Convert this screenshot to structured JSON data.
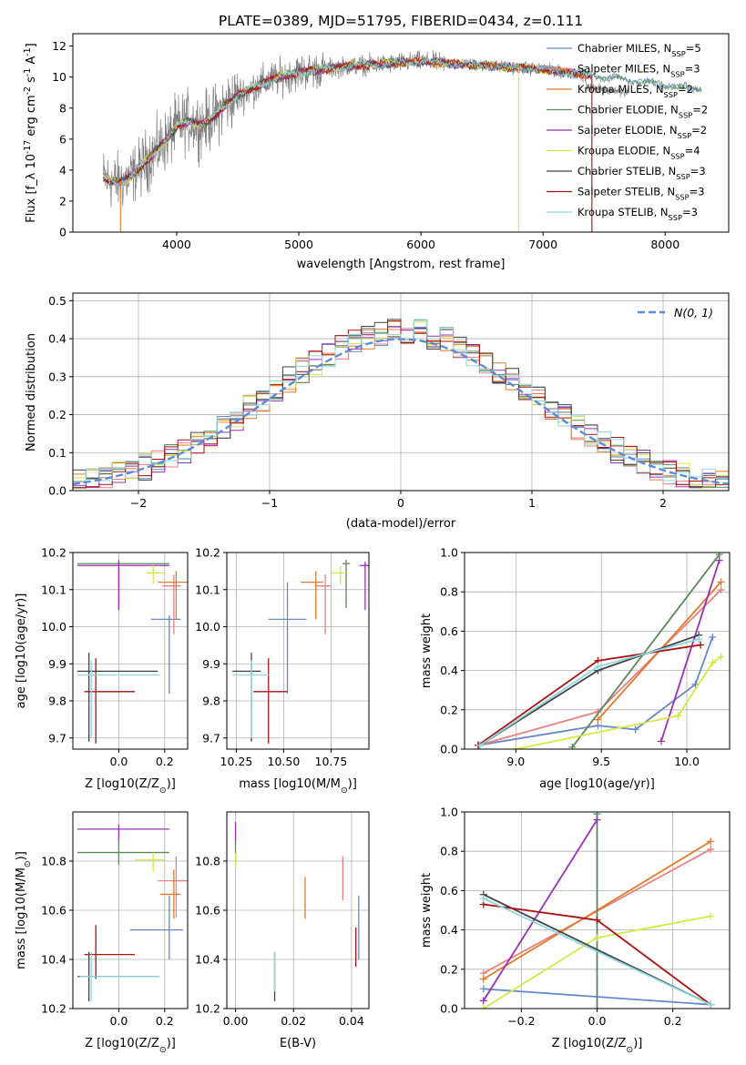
{
  "chart_data": [
    {
      "type": "line",
      "title": "PLATE=0389, MJD=51795, FIBERID=0434, z=0.111",
      "xlabel": "wavelength [Angstrom, rest frame]",
      "ylabel": "Flux [f_λ 10^-17 erg cm^-2 s^-1 A^-1]",
      "xlim": [
        3150,
        8520
      ],
      "ylim": [
        0,
        12.8
      ],
      "xticks": [
        4000,
        5000,
        6000,
        7000,
        8000
      ],
      "yticks": [
        0,
        2,
        4,
        6,
        8,
        10,
        12
      ],
      "data_color": "#808080",
      "continuum": {
        "x": [
          3400,
          3500,
          3600,
          3700,
          3800,
          3900,
          4000,
          4100,
          4200,
          4300,
          4400,
          4500,
          4600,
          4700,
          4800,
          4900,
          5000,
          5200,
          5400,
          5600,
          5800,
          6000,
          6200,
          6400,
          6600,
          6800,
          7000,
          7200,
          7400,
          7600,
          7800,
          8000,
          8200
        ],
        "y": [
          3.5,
          3.2,
          3.4,
          4.2,
          5.0,
          5.8,
          6.8,
          7.2,
          6.9,
          7.4,
          8.2,
          8.8,
          9.2,
          9.6,
          9.9,
          10.1,
          10.3,
          10.5,
          10.7,
          10.8,
          10.9,
          11.0,
          10.9,
          10.8,
          10.7,
          10.6,
          10.5,
          10.3,
          10.1,
          9.9,
          9.7,
          9.5,
          9.3
        ]
      },
      "legend_position": "upper right",
      "series": [
        {
          "name": "Chabrier MILES, N_SSP=5",
          "color": "#6688cc"
        },
        {
          "name": "Salpeter MILES, N_SSP=3",
          "color": "#e8817f"
        },
        {
          "name": "Kroupa MILES, N_SSP=2",
          "color": "#e07b2a"
        },
        {
          "name": "Chabrier ELODIE, N_SSP=2",
          "color": "#5a8a5a"
        },
        {
          "name": "Salpeter ELODIE, N_SSP=2",
          "color": "#9b30b8"
        },
        {
          "name": "Kroupa ELODIE, N_SSP=4",
          "color": "#d4e84a"
        },
        {
          "name": "Chabrier STELIB, N_SSP=3",
          "color": "#444444"
        },
        {
          "name": "Salpeter STELIB, N_SSP=3",
          "color": "#aa1111"
        },
        {
          "name": "Kroupa STELIB, N_SSP=3",
          "color": "#8ed8e0"
        }
      ]
    },
    {
      "type": "histogram",
      "xlabel": "(data-model)/error",
      "ylabel": "Normed distribution",
      "xlim": [
        -2.5,
        2.5
      ],
      "ylim": [
        0,
        0.52
      ],
      "xticks": [
        -2,
        -1,
        0,
        1,
        2
      ],
      "yticks": [
        0.0,
        0.1,
        0.2,
        0.3,
        0.4,
        0.5
      ],
      "grid": true,
      "reference_curve": {
        "name": "N(0,1)",
        "mean": 0,
        "sigma": 1,
        "color": "#5b8bd9",
        "style": "dashed"
      },
      "legend_position": "upper right",
      "bin_width": 0.1,
      "bin_edges_start": -2.5
    },
    {
      "type": "scatter",
      "xlabel": "Z [log10(Z/Z_sun)]",
      "ylabel": "age [log10(age/yr)]",
      "xlim": [
        -0.2,
        0.3
      ],
      "ylim": [
        9.67,
        10.2
      ],
      "xticks": [
        0.0,
        0.2
      ],
      "yticks": [
        9.7,
        9.8,
        9.9,
        10.0,
        10.1,
        10.2
      ],
      "points": [
        {
          "series": 0,
          "x": 0.22,
          "y": 10.02,
          "xerr": [
            0.08,
            0.05
          ],
          "yerr": [
            0.2,
            0.01
          ]
        },
        {
          "series": 1,
          "x": 0.24,
          "y": 10.11,
          "xerr": [
            0.05,
            0.03
          ],
          "yerr": [
            0.13,
            0.03
          ]
        },
        {
          "series": 2,
          "x": 0.25,
          "y": 10.12,
          "xerr": [
            0.08,
            0.05
          ],
          "yerr": [
            0.1,
            0.03
          ]
        },
        {
          "series": 3,
          "x": 0.0,
          "y": 10.17,
          "xerr": [
            0.18,
            0.22
          ],
          "yerr": [
            0.12,
            0.01
          ]
        },
        {
          "series": 4,
          "x": 0.0,
          "y": 10.165,
          "xerr": [
            0.18,
            0.22
          ],
          "yerr": [
            0.12,
            0.01
          ]
        },
        {
          "series": 5,
          "x": 0.15,
          "y": 10.145,
          "xerr": [
            0.03,
            0.05
          ],
          "yerr": [
            0.03,
            0.02
          ]
        },
        {
          "series": 6,
          "x": -0.13,
          "y": 9.88,
          "xerr": [
            0.05,
            0.3
          ],
          "yerr": [
            0.19,
            0.05
          ]
        },
        {
          "series": 7,
          "x": -0.1,
          "y": 9.825,
          "xerr": [
            0.05,
            0.17
          ],
          "yerr": [
            0.14,
            0.09
          ]
        },
        {
          "series": 8,
          "x": -0.12,
          "y": 9.87,
          "xerr": [
            0.06,
            0.3
          ],
          "yerr": [
            0.17,
            0.04
          ]
        }
      ]
    },
    {
      "type": "scatter",
      "xlabel": "mass [log10(M/M_sun)]",
      "xlim": [
        10.2,
        10.95
      ],
      "ylim": [
        9.67,
        10.2
      ],
      "xticks": [
        10.25,
        10.5,
        10.75
      ],
      "yticks": [
        9.7,
        9.8,
        9.9,
        10.0,
        10.1,
        10.2
      ],
      "points": [
        {
          "series": 0,
          "x": 10.52,
          "y": 10.02,
          "xerr": [
            0.1,
            0.1
          ],
          "yerr": [
            0.2,
            0.1
          ]
        },
        {
          "series": 1,
          "x": 10.72,
          "y": 10.11,
          "xerr": [
            0.05,
            0.03
          ],
          "yerr": [
            0.13,
            0.03
          ]
        },
        {
          "series": 2,
          "x": 10.67,
          "y": 10.12,
          "xerr": [
            0.08,
            0.04
          ],
          "yerr": [
            0.1,
            0.03
          ]
        },
        {
          "series": 3,
          "x": 10.83,
          "y": 10.17,
          "xerr": [
            0.02,
            0.02
          ],
          "yerr": [
            0.12,
            0.01
          ]
        },
        {
          "series": 4,
          "x": 10.93,
          "y": 10.165,
          "xerr": [
            0.03,
            0.02
          ],
          "yerr": [
            0.12,
            0.01
          ]
        },
        {
          "series": 5,
          "x": 10.8,
          "y": 10.145,
          "xerr": [
            0.05,
            0.02
          ],
          "yerr": [
            0.03,
            0.02
          ]
        },
        {
          "series": 6,
          "x": 10.33,
          "y": 9.88,
          "xerr": [
            0.1,
            0.05
          ],
          "yerr": [
            0.19,
            0.05
          ]
        },
        {
          "series": 7,
          "x": 10.42,
          "y": 9.825,
          "xerr": [
            0.08,
            0.1
          ],
          "yerr": [
            0.14,
            0.09
          ]
        },
        {
          "series": 8,
          "x": 10.33,
          "y": 9.87,
          "xerr": [
            0.1,
            0.1
          ],
          "yerr": [
            0.17,
            0.04
          ]
        }
      ]
    },
    {
      "type": "line",
      "xlabel": "age [log10(age/yr)]",
      "ylabel": "mass weight",
      "xlim": [
        8.7,
        10.25
      ],
      "ylim": [
        0,
        1
      ],
      "xticks": [
        9.0,
        9.5,
        10.0
      ],
      "yticks": [
        0.0,
        0.2,
        0.4,
        0.6,
        0.8,
        1.0
      ],
      "grid": true,
      "lines": [
        {
          "series": 0,
          "x": [
            8.78,
            9.48,
            9.7,
            10.05,
            10.15
          ],
          "y": [
            0.02,
            0.12,
            0.1,
            0.33,
            0.57
          ]
        },
        {
          "series": 1,
          "x": [
            8.78,
            9.48,
            10.2
          ],
          "y": [
            0.02,
            0.19,
            0.81
          ]
        },
        {
          "series": 2,
          "x": [
            9.48,
            10.2
          ],
          "y": [
            0.15,
            0.85
          ]
        },
        {
          "series": 3,
          "x": [
            9.33,
            10.19
          ],
          "y": [
            0.01,
            0.99
          ]
        },
        {
          "series": 4,
          "x": [
            9.85,
            10.19
          ],
          "y": [
            0.04,
            0.96
          ]
        },
        {
          "series": 5,
          "x": [
            9.0,
            9.95,
            10.15,
            10.2
          ],
          "y": [
            0.0,
            0.17,
            0.44,
            0.47
          ]
        },
        {
          "series": 6,
          "x": [
            8.79,
            9.48,
            10.07
          ],
          "y": [
            0.02,
            0.4,
            0.58
          ]
        },
        {
          "series": 7,
          "x": [
            8.78,
            9.48,
            10.08
          ],
          "y": [
            0.02,
            0.45,
            0.53
          ]
        },
        {
          "series": 8,
          "x": [
            8.79,
            9.48,
            10.07
          ],
          "y": [
            0.02,
            0.42,
            0.56
          ]
        }
      ]
    },
    {
      "type": "scatter",
      "xlabel": "Z [log10(Z/Z_sun)]",
      "ylabel": "mass [log10(M/M_sun)]",
      "xlim": [
        -0.2,
        0.3
      ],
      "ylim": [
        10.2,
        11.0
      ],
      "xticks": [
        0.0,
        0.2
      ],
      "yticks": [
        10.2,
        10.4,
        10.6,
        10.8
      ],
      "points": [
        {
          "series": 0,
          "x": 0.22,
          "y": 10.52,
          "xerr": [
            0.17,
            0.06
          ],
          "yerr": [
            0.12,
            0.14
          ]
        },
        {
          "series": 1,
          "x": 0.25,
          "y": 10.72,
          "xerr": [
            0.08,
            0.05
          ],
          "yerr": [
            0.15,
            0.1
          ]
        },
        {
          "series": 2,
          "x": 0.24,
          "y": 10.665,
          "xerr": [
            0.06,
            0.03
          ],
          "yerr": [
            0.1,
            0.1
          ]
        },
        {
          "series": 3,
          "x": 0.0,
          "y": 10.835,
          "xerr": [
            0.18,
            0.22
          ],
          "yerr": [
            0.05,
            0.05
          ]
        },
        {
          "series": 4,
          "x": 0.0,
          "y": 10.93,
          "xerr": [
            0.18,
            0.22
          ],
          "yerr": [
            0.05,
            0.02
          ]
        },
        {
          "series": 5,
          "x": 0.15,
          "y": 10.805,
          "xerr": [
            0.08,
            0.05
          ],
          "yerr": [
            0.05,
            0.03
          ]
        },
        {
          "series": 6,
          "x": -0.13,
          "y": 10.33,
          "xerr": [
            0.05,
            0.3
          ],
          "yerr": [
            0.1,
            0.1
          ]
        },
        {
          "series": 7,
          "x": -0.1,
          "y": 10.42,
          "xerr": [
            0.05,
            0.17
          ],
          "yerr": [
            0.1,
            0.12
          ]
        },
        {
          "series": 8,
          "x": -0.12,
          "y": 10.33,
          "xerr": [
            0.05,
            0.3
          ],
          "yerr": [
            0.1,
            0.1
          ]
        }
      ]
    },
    {
      "type": "scatter",
      "xlabel": "E(B-V)",
      "xlim": [
        -0.003,
        0.046
      ],
      "ylim": [
        10.2,
        11.0
      ],
      "xticks": [
        0.0,
        0.02,
        0.04
      ],
      "yticks": [
        10.2,
        10.4,
        10.6,
        10.8
      ],
      "points": [
        {
          "series": 0,
          "x": 0.0425,
          "y": 10.52,
          "yerr": [
            0.12,
            0.14
          ]
        },
        {
          "series": 1,
          "x": 0.037,
          "y": 10.72,
          "yerr": [
            0.08,
            0.1
          ]
        },
        {
          "series": 2,
          "x": 0.024,
          "y": 10.665,
          "yerr": [
            0.1,
            0.07
          ]
        },
        {
          "series": 3,
          "x": 0.0,
          "y": 10.835,
          "yerr": [
            0.05,
            0.05
          ]
        },
        {
          "series": 4,
          "x": 0.0,
          "y": 10.93,
          "yerr": [
            0.05,
            0.03
          ]
        },
        {
          "series": 5,
          "x": 0.0,
          "y": 10.805,
          "yerr": [
            0.03,
            0.03
          ]
        },
        {
          "series": 6,
          "x": 0.0135,
          "y": 10.33,
          "yerr": [
            0.1,
            0.1
          ]
        },
        {
          "series": 7,
          "x": 0.0415,
          "y": 10.42,
          "yerr": [
            0.05,
            0.11
          ]
        },
        {
          "series": 8,
          "x": 0.0135,
          "y": 10.33,
          "yerr": [
            0.06,
            0.1
          ]
        }
      ]
    },
    {
      "type": "line",
      "xlabel": "Z [log10(Z/Z_sun)]",
      "ylabel": "mass weight",
      "xlim": [
        -0.35,
        0.35
      ],
      "ylim": [
        0,
        1
      ],
      "xticks": [
        -0.2,
        0.0,
        0.2
      ],
      "yticks": [
        0.0,
        0.2,
        0.4,
        0.6,
        0.8,
        1.0
      ],
      "grid": true,
      "lines": [
        {
          "series": 0,
          "x": [
            -0.3,
            0.3
          ],
          "y": [
            0.1,
            0.02
          ]
        },
        {
          "series": 1,
          "x": [
            -0.3,
            0.3
          ],
          "y": [
            0.18,
            0.81
          ]
        },
        {
          "series": 2,
          "x": [
            -0.3,
            0.3
          ],
          "y": [
            0.15,
            0.85
          ]
        },
        {
          "series": 3,
          "x": [
            0.0,
            0.0
          ],
          "y": [
            0.0,
            0.99
          ]
        },
        {
          "series": 4,
          "x": [
            -0.3,
            0.0
          ],
          "y": [
            0.04,
            0.96
          ]
        },
        {
          "series": 5,
          "x": [
            -0.3,
            0.0,
            0.3
          ],
          "y": [
            0.0,
            0.36,
            0.47
          ]
        },
        {
          "series": 6,
          "x": [
            -0.3,
            0.3
          ],
          "y": [
            0.58,
            0.02
          ]
        },
        {
          "series": 7,
          "x": [
            -0.3,
            0.0,
            0.3
          ],
          "y": [
            0.53,
            0.45,
            0.02
          ]
        },
        {
          "series": 8,
          "x": [
            -0.3,
            0.3
          ],
          "y": [
            0.56,
            0.02
          ]
        }
      ]
    }
  ]
}
